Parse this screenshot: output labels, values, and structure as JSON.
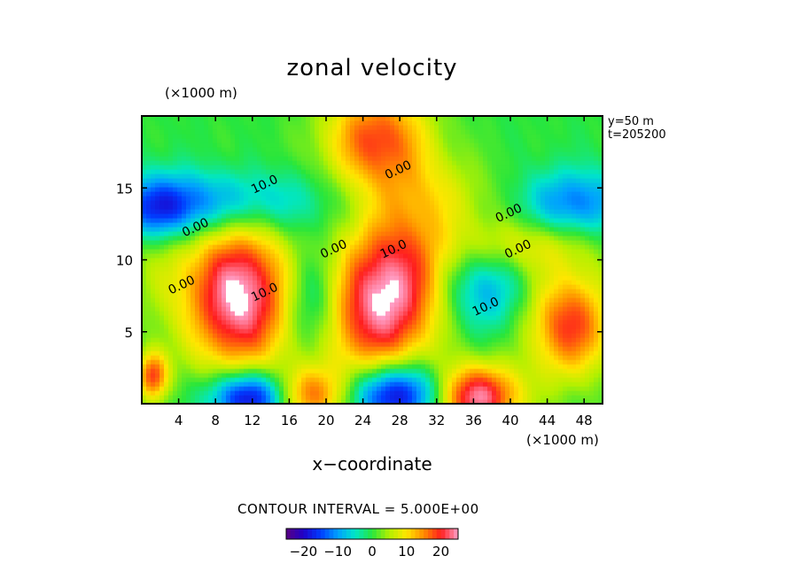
{
  "chart_data": {
    "type": "heatmap",
    "title": "zonal velocity",
    "xlabel": "x−coordinate",
    "x_unit": "(×1000 m)",
    "y_unit": "(×1000 m)",
    "level_labels": [
      "y=50  m",
      "t=205200"
    ],
    "xlim": [
      0,
      50
    ],
    "ylim": [
      0,
      20
    ],
    "x_ticks": [
      4,
      8,
      12,
      16,
      20,
      24,
      28,
      32,
      36,
      40,
      44,
      48
    ],
    "y_ticks": [
      5,
      10,
      15
    ],
    "contour_interval_text": "CONTOUR INTERVAL = 5.000E+00",
    "contour_labels": [
      {
        "text": "10.0",
        "x": 13.5,
        "y": 15.0
      },
      {
        "text": "0.00",
        "x": 28.0,
        "y": 16.0
      },
      {
        "text": "0.00",
        "x": 40.0,
        "y": 13.0
      },
      {
        "text": "0.00",
        "x": 6.0,
        "y": 12.0
      },
      {
        "text": "0.00",
        "x": 21.0,
        "y": 10.5
      },
      {
        "text": "0.00",
        "x": 4.5,
        "y": 8.0
      },
      {
        "text": "10.0",
        "x": 27.5,
        "y": 10.5
      },
      {
        "text": "10.0",
        "x": 13.5,
        "y": 7.5
      },
      {
        "text": "0.00",
        "x": 41.0,
        "y": 10.5
      },
      {
        "text": "10.0",
        "x": 37.5,
        "y": 6.5
      }
    ],
    "features": [
      {
        "x": 10.5,
        "y": 7.5,
        "amp": 26,
        "sx": 4.0,
        "sy": 3.8
      },
      {
        "x": 26.5,
        "y": 7.5,
        "amp": 26,
        "sx": 4.8,
        "sy": 3.8,
        "tilt": -0.6
      },
      {
        "x": 25.5,
        "y": 18.5,
        "amp": 18,
        "sx": 4.0,
        "sy": 2.5
      },
      {
        "x": 46.5,
        "y": 5.5,
        "amp": 19,
        "sx": 3.2,
        "sy": 2.6
      },
      {
        "x": 36.0,
        "y": 0.5,
        "amp": 26,
        "sx": 3.5,
        "sy": 1.6
      },
      {
        "x": 18.5,
        "y": 0.6,
        "amp": 16,
        "sx": 2.5,
        "sy": 1.4
      },
      {
        "x": 1.2,
        "y": 2.0,
        "amp": 18,
        "sx": 1.2,
        "sy": 1.2
      },
      {
        "x": 8.0,
        "y": 14.0,
        "amp": -12,
        "sx": 8.0,
        "sy": 1.6
      },
      {
        "x": 2.0,
        "y": 13.5,
        "amp": -11,
        "sx": 3.0,
        "sy": 1.5
      },
      {
        "x": 47.0,
        "y": 14.0,
        "amp": -12,
        "sx": 4.0,
        "sy": 1.6
      },
      {
        "x": 28.0,
        "y": 0.7,
        "amp": -24,
        "sx": 4.0,
        "sy": 1.5
      },
      {
        "x": 11.5,
        "y": 0.5,
        "amp": -22,
        "sx": 3.0,
        "sy": 1.3
      },
      {
        "x": 18.5,
        "y": 7.0,
        "amp": -9,
        "sx": 2.0,
        "sy": 2.5
      },
      {
        "x": 37.0,
        "y": 8.0,
        "amp": -10,
        "sx": 3.0,
        "sy": 2.0
      },
      {
        "x": 41.5,
        "y": 11.0,
        "amp": 8,
        "sx": 5.0,
        "sy": 1.4
      },
      {
        "x": 32.0,
        "y": 14.5,
        "amp": 5,
        "sx": 5.0,
        "sy": 2.0
      },
      {
        "x": 2.0,
        "y": 9.5,
        "amp": 4,
        "sx": 3.0,
        "sy": 3.0
      }
    ],
    "colorbar": {
      "range": [
        -25,
        25
      ],
      "tick_labels": [
        {
          "text": "−20",
          "value": -20
        },
        {
          "text": "−10",
          "value": -10
        },
        {
          "text": "0",
          "value": 0
        },
        {
          "text": "10",
          "value": 10
        },
        {
          "text": "20",
          "value": 20
        }
      ]
    }
  }
}
